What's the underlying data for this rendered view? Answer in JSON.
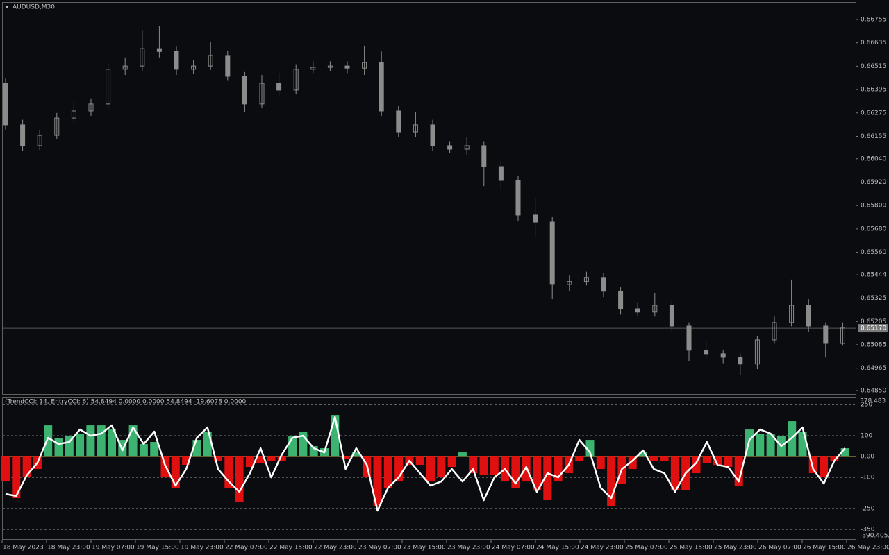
{
  "chart_data": [
    {
      "type": "candlestick",
      "title": "AUDUSD,M30",
      "color": "#8c8c8c",
      "open": [
        0.66427,
        0.66214,
        0.66107,
        0.6616,
        0.66249,
        0.66285,
        0.66321,
        0.66499,
        0.66516,
        0.66605,
        0.6659,
        0.66499,
        0.66516,
        0.6657,
        0.66463,
        0.66321,
        0.66427,
        0.66392,
        0.66499,
        0.66509,
        0.66516,
        0.66505,
        0.66534,
        0.66285,
        0.66178,
        0.66214,
        0.66107,
        0.66089,
        0.66107,
        0.66,
        0.65929,
        0.65751,
        0.65715,
        0.65395,
        0.6541,
        0.65431,
        0.6536,
        0.6527,
        0.65253,
        0.65288,
        0.65181,
        0.65057,
        0.65039,
        0.65021,
        0.64986,
        0.6511,
        0.65199,
        0.65288,
        0.65181,
        0.65092
      ],
      "high": [
        0.66455,
        0.6624,
        0.66185,
        0.66275,
        0.6633,
        0.6635,
        0.6653,
        0.6656,
        0.667,
        0.6672,
        0.66615,
        0.66545,
        0.6664,
        0.66595,
        0.66485,
        0.6647,
        0.6648,
        0.66525,
        0.6654,
        0.6654,
        0.6654,
        0.6662,
        0.6659,
        0.6631,
        0.6628,
        0.6624,
        0.6613,
        0.6615,
        0.6613,
        0.6603,
        0.6595,
        0.6584,
        0.6574,
        0.6544,
        0.6546,
        0.65455,
        0.6538,
        0.653,
        0.6535,
        0.6531,
        0.652,
        0.651,
        0.6506,
        0.6504,
        0.6513,
        0.6523,
        0.6542,
        0.6532,
        0.652,
        0.652
      ],
      "low": [
        0.6619,
        0.6608,
        0.66085,
        0.6614,
        0.66225,
        0.6626,
        0.663,
        0.6647,
        0.6649,
        0.6656,
        0.6647,
        0.66475,
        0.66495,
        0.6644,
        0.6628,
        0.663,
        0.66365,
        0.6637,
        0.6648,
        0.6649,
        0.6648,
        0.6647,
        0.6626,
        0.6615,
        0.6615,
        0.6608,
        0.6607,
        0.6606,
        0.659,
        0.6588,
        0.6572,
        0.6564,
        0.6532,
        0.6536,
        0.6539,
        0.6533,
        0.6524,
        0.6523,
        0.6523,
        0.6515,
        0.65,
        0.6501,
        0.6499,
        0.6493,
        0.6496,
        0.6509,
        0.6518,
        0.6515,
        0.6502,
        0.6508
      ],
      "close": [
        0.66214,
        0.66107,
        0.6616,
        0.66249,
        0.66285,
        0.66321,
        0.66499,
        0.66516,
        0.66605,
        0.6659,
        0.66499,
        0.66516,
        0.6657,
        0.66463,
        0.66321,
        0.66427,
        0.66392,
        0.66499,
        0.66509,
        0.66516,
        0.66505,
        0.66534,
        0.66285,
        0.66178,
        0.66214,
        0.66107,
        0.66089,
        0.66107,
        0.66,
        0.65929,
        0.65751,
        0.65715,
        0.65395,
        0.6541,
        0.65431,
        0.6536,
        0.6527,
        0.65253,
        0.65288,
        0.65181,
        0.65057,
        0.65039,
        0.65021,
        0.64986,
        0.6511,
        0.65199,
        0.65288,
        0.65181,
        0.65092,
        0.65171
      ],
      "ylim": [
        0.64832,
        0.66844
      ],
      "yticks": [
        0.66755,
        0.66635,
        0.66515,
        0.66395,
        0.66275,
        0.66155,
        {
          "value": 0.6604,
          "label": "0.66040"
        },
        {
          "value": 0.6592,
          "label": "0.65920"
        },
        {
          "value": 0.658,
          "label": "0.65800"
        },
        {
          "value": 0.6568,
          "label": "0.65680"
        },
        {
          "value": 0.6556,
          "label": "0.65560"
        },
        0.65444,
        0.65325,
        0.65205,
        0.65085,
        0.64965,
        {
          "value": 0.6485,
          "label": "0.64850"
        }
      ],
      "current_price": {
        "value": 0.6517,
        "label": "0.65170"
      }
    },
    {
      "type": "cci",
      "title": "(TrendCCI: 14, EntryCCI: 6) 54.8494 0.0000 0.0000 54.8494 -19.6078 0.0000",
      "values": [
        -120,
        -200,
        -100,
        -60,
        150,
        90,
        100,
        110,
        150,
        150,
        130,
        80,
        150,
        60,
        70,
        -100,
        -150,
        -40,
        80,
        120,
        -20,
        -150,
        -220,
        -50,
        -30,
        -20,
        -20,
        100,
        120,
        50,
        40,
        200,
        -10,
        20,
        -100,
        -240,
        -150,
        -120,
        -40,
        -40,
        -120,
        -100,
        -50,
        20,
        -80,
        -90,
        -90,
        -120,
        -150,
        -120,
        -160,
        -210,
        -120,
        -80,
        -20,
        80,
        -60,
        -240,
        -130,
        -60,
        20,
        -20,
        -20,
        -160,
        -160,
        -80,
        -30,
        -40,
        -50,
        -140,
        130,
        110,
        110,
        100,
        170,
        120,
        -80,
        -100,
        -20,
        40
      ],
      "line_values": [
        -180,
        -190,
        -90,
        -30,
        90,
        60,
        70,
        130,
        100,
        110,
        150,
        30,
        140,
        60,
        120,
        -40,
        -140,
        -60,
        90,
        140,
        -60,
        -120,
        -170,
        -80,
        40,
        -100,
        10,
        90,
        100,
        40,
        20,
        190,
        -60,
        40,
        -40,
        -260,
        -150,
        -100,
        -20,
        -80,
        -140,
        -120,
        -60,
        -120,
        -60,
        -210,
        -100,
        -60,
        -130,
        -50,
        -170,
        -80,
        -100,
        -40,
        80,
        20,
        -150,
        -200,
        -60,
        -20,
        30,
        -60,
        -80,
        -170,
        -80,
        -30,
        70,
        -40,
        -50,
        -120,
        80,
        130,
        110,
        50,
        90,
        140,
        -60,
        -130,
        -20,
        40
      ],
      "up_color": "#3cb371",
      "down_color": "#e01010",
      "line_color": "#ffffff",
      "zero_color": "#c8b44a",
      "ylim": [
        -400,
        287
      ],
      "yticks": [
        250,
        100,
        {
          "value": 0,
          "label": "0.00"
        },
        -100,
        -250,
        -350
      ],
      "scale_max": 378.483,
      "scale_min": -390.4052,
      "xticks": [
        "18 May 2023",
        "18 May 23:00",
        "19 May 07:00",
        "19 May 15:00",
        "19 May 23:00",
        "22 May 07:00",
        "22 May 15:00",
        "22 May 23:00",
        "23 May 07:00",
        "23 May 15:00",
        "23 May 23:00",
        "24 May 07:00",
        "24 May 15:00",
        "24 May 23:00",
        "25 May 07:00",
        "25 May 15:00",
        "25 May 23:00",
        "26 May 07:00",
        "26 May 15:00",
        "26 May 23:00"
      ]
    }
  ]
}
